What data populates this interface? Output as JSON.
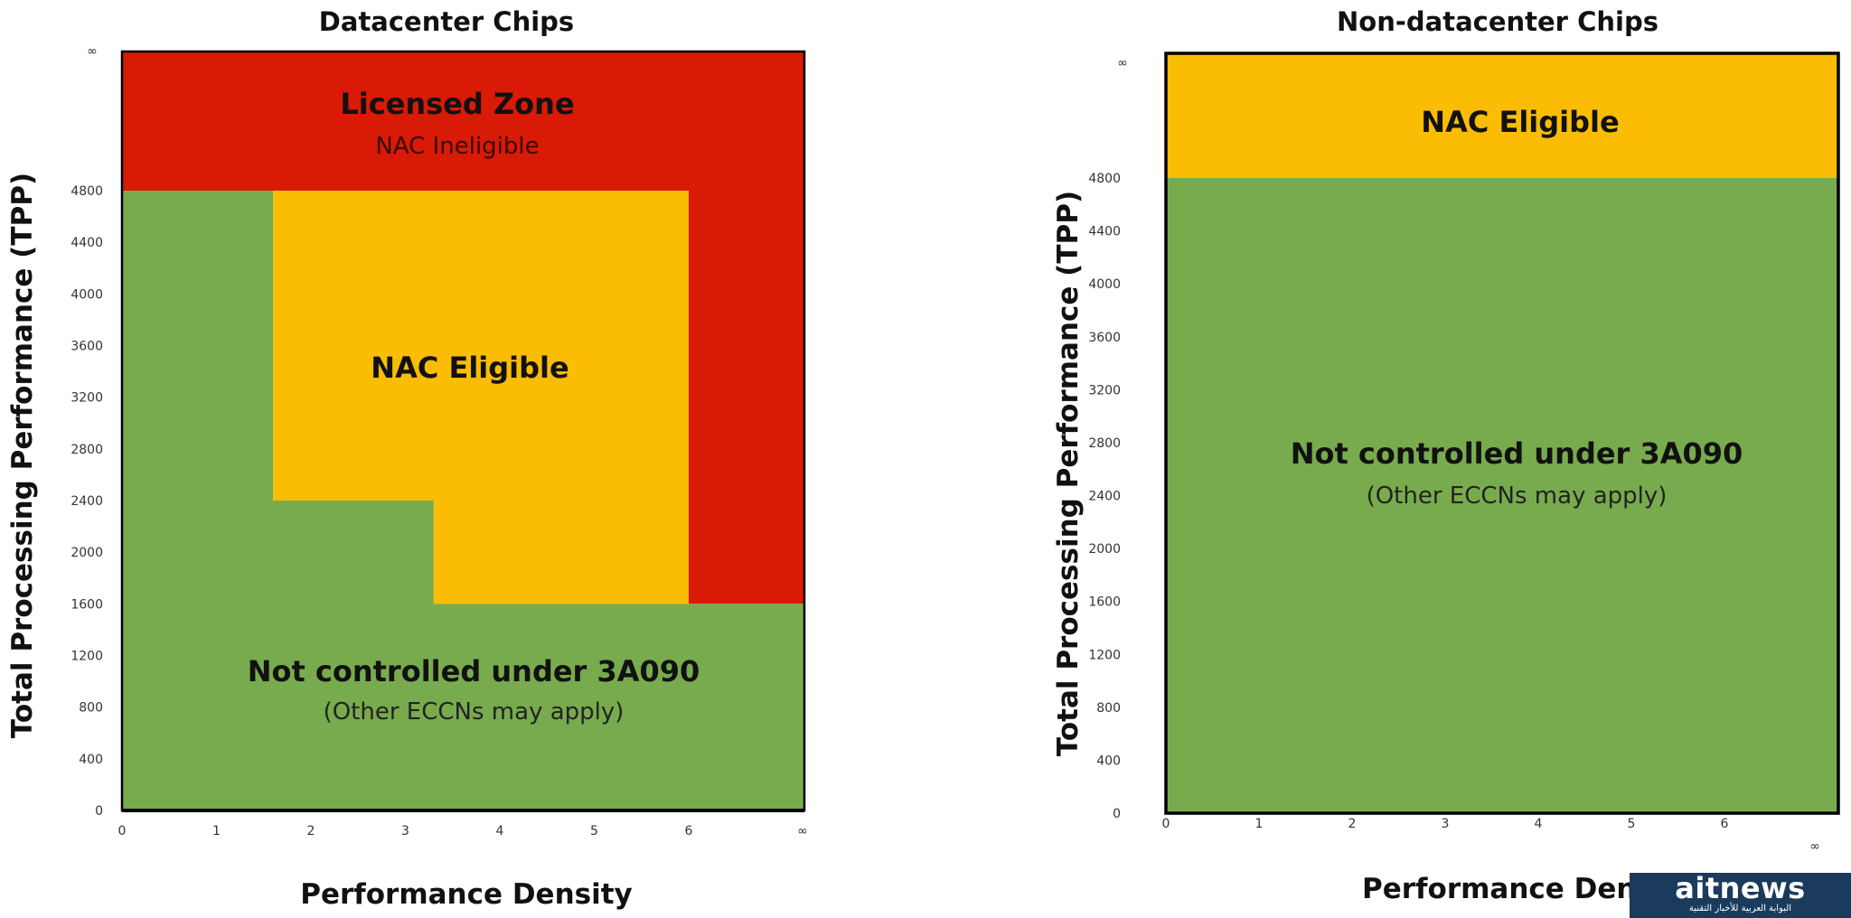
{
  "chart_data": [
    {
      "type": "area",
      "title": "Datacenter Chips",
      "xlabel": "Performance Density",
      "ylabel": "Total Processing Performance (TPP)",
      "xlim": [
        0,
        7.2
      ],
      "ylim": [
        0,
        5400
      ],
      "x_ticks": [
        0,
        1,
        2,
        3,
        4,
        5,
        6
      ],
      "x_tick_labels": [
        "0",
        "1",
        "2",
        "3",
        "4",
        "5",
        "6"
      ],
      "x_inf_label": "∞",
      "y_ticks": [
        0,
        400,
        800,
        1200,
        1600,
        2000,
        2400,
        2800,
        3200,
        3600,
        4000,
        4400,
        4800
      ],
      "y_tick_labels": [
        "0",
        "400",
        "800",
        "1200",
        "1600",
        "2000",
        "2400",
        "2800",
        "3200",
        "3600",
        "4000",
        "4400",
        "4800"
      ],
      "y_inf_label": "∞",
      "zones": [
        {
          "name": "Licensed Zone",
          "sublabel": "NAC Ineligible",
          "color": "#d81a06",
          "polygon": [
            [
              0,
              4800
            ],
            [
              0,
              5400
            ],
            [
              7.2,
              5400
            ],
            [
              7.2,
              1600
            ],
            [
              6,
              1600
            ],
            [
              6,
              4800
            ]
          ]
        },
        {
          "name": "NAC Eligible",
          "sublabel": "",
          "color": "#fbbc04",
          "polygon": [
            [
              1.6,
              4800
            ],
            [
              6,
              4800
            ],
            [
              6,
              1600
            ],
            [
              3.3,
              1600
            ],
            [
              3.3,
              2400
            ],
            [
              1.6,
              2400
            ]
          ]
        },
        {
          "name": "Not controlled under 3A090",
          "sublabel": "(Other ECCNs may apply)",
          "color": "#78ab4d",
          "polygon": [
            [
              0,
              0
            ],
            [
              7.2,
              0
            ],
            [
              7.2,
              1600
            ],
            [
              3.3,
              1600
            ],
            [
              3.3,
              2400
            ],
            [
              1.6,
              2400
            ],
            [
              1.6,
              4800
            ],
            [
              0,
              4800
            ]
          ]
        }
      ]
    },
    {
      "type": "area",
      "title": "Non-datacenter Chips",
      "xlabel": "Performance Den",
      "ylabel": "Total Processing Performance (TPP)",
      "xlim": [
        0,
        7.2
      ],
      "ylim": [
        0,
        5400
      ],
      "x_ticks": [
        0,
        1,
        2,
        3,
        4,
        5,
        6
      ],
      "x_tick_labels": [
        "0",
        "1",
        "2",
        "3",
        "4",
        "5",
        "6"
      ],
      "x_inf_label": "∞",
      "y_ticks": [
        0,
        400,
        800,
        1200,
        1600,
        2000,
        2400,
        2800,
        3200,
        3600,
        4000,
        4400,
        4800
      ],
      "y_tick_labels": [
        "0",
        "400",
        "800",
        "1200",
        "1600",
        "2000",
        "2400",
        "2800",
        "3200",
        "3600",
        "4000",
        "4400",
        "4800"
      ],
      "y_inf_label": "∞",
      "zones": [
        {
          "name": "NAC Eligible",
          "sublabel": "",
          "color": "#fbbc04",
          "polygon": [
            [
              0,
              4800
            ],
            [
              0,
              5400
            ],
            [
              7.2,
              5400
            ],
            [
              7.2,
              4800
            ]
          ]
        },
        {
          "name": "Not controlled under 3A090",
          "sublabel": "(Other ECCNs may apply)",
          "color": "#78ab4d",
          "polygon": [
            [
              0,
              0
            ],
            [
              7.2,
              0
            ],
            [
              7.2,
              4800
            ],
            [
              0,
              4800
            ]
          ]
        }
      ]
    }
  ],
  "watermark": {
    "brand": "aitnews",
    "tagline": "البوابة العربية للأخبار التقنية",
    "color": "#1b3b5c"
  }
}
